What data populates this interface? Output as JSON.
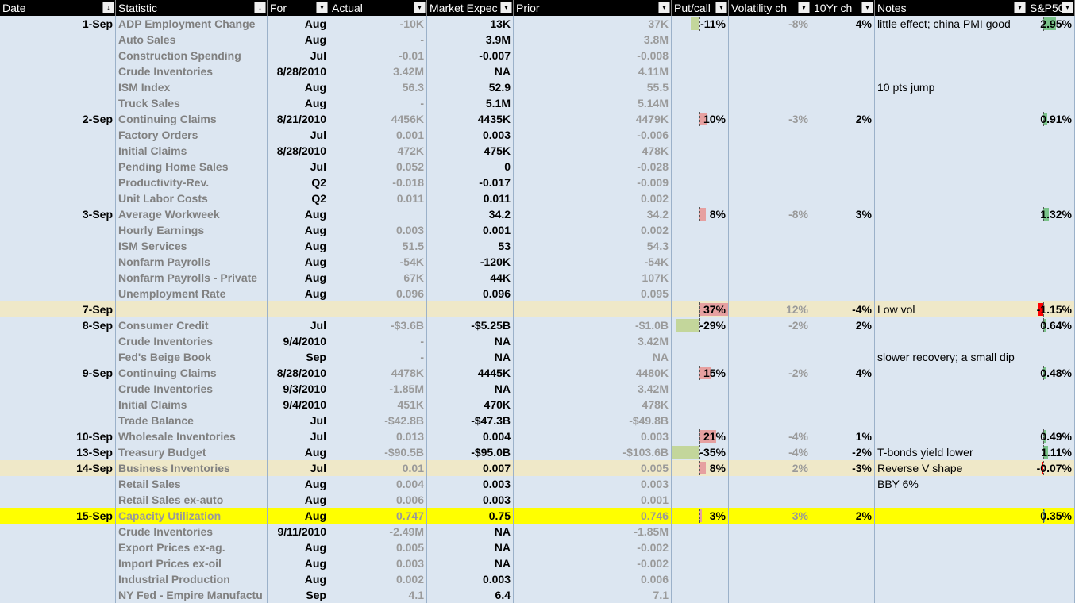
{
  "columns": [
    {
      "label": "Date",
      "filter": "↓"
    },
    {
      "label": "Statistic",
      "filter": "↓"
    },
    {
      "label": "For",
      "filter": "▾"
    },
    {
      "label": "Actual",
      "filter": "▾"
    },
    {
      "label": "Market Expec",
      "filter": "▾"
    },
    {
      "label": "Prior",
      "filter": "▾"
    },
    {
      "label": "Put/call",
      "filter": "▾"
    },
    {
      "label": "Volatility ch",
      "filter": "▾"
    },
    {
      "label": "10Yr ch",
      "filter": "▾"
    },
    {
      "label": "Notes",
      "filter": "▾"
    },
    {
      "label": "S&P500",
      "filter": "▾"
    }
  ],
  "colors": {
    "header_bg": "#000000",
    "sheet_bg": "#dce6f1",
    "highlight_tan": "#efe8c8",
    "highlight_yellow": "#ffff00",
    "bar_pos": "#e6a0a0",
    "bar_neg": "#c3d69b",
    "bar_red": "#ff0000",
    "bar_green": "#7ac38a"
  },
  "rows": [
    {
      "date": "1-Sep",
      "stat": "ADP Employment Change",
      "for": "Aug",
      "actual": "-10K",
      "expected": "13K",
      "prior": "37K",
      "putcall": "-11%",
      "pc_value": -0.11,
      "vol": "-8%",
      "tenyr": "4%",
      "notes": "little effect; china PMI good",
      "sp": "2.95%",
      "sp_value": 2.95,
      "hl": ""
    },
    {
      "date": "",
      "stat": "Auto Sales",
      "for": "Aug",
      "actual": "-",
      "expected": "3.9M",
      "prior": "3.8M",
      "putcall": "",
      "vol": "",
      "tenyr": "",
      "notes": "",
      "sp": "",
      "hl": ""
    },
    {
      "date": "",
      "stat": "Construction Spending",
      "for": "Jul",
      "actual": "-0.01",
      "expected": "-0.007",
      "prior": "-0.008",
      "putcall": "",
      "vol": "",
      "tenyr": "",
      "notes": "",
      "sp": "",
      "hl": ""
    },
    {
      "date": "",
      "stat": "Crude Inventories",
      "for": "8/28/2010",
      "actual": "3.42M",
      "expected": "NA",
      "prior": "4.11M",
      "putcall": "",
      "vol": "",
      "tenyr": "",
      "notes": "",
      "sp": "",
      "hl": ""
    },
    {
      "date": "",
      "stat": "ISM Index",
      "for": "Aug",
      "actual": "56.3",
      "expected": "52.9",
      "prior": "55.5",
      "putcall": "",
      "vol": "",
      "tenyr": "",
      "notes": "10 pts jump",
      "sp": "",
      "hl": ""
    },
    {
      "date": "",
      "stat": "Truck Sales",
      "for": "Aug",
      "actual": "-",
      "expected": "5.1M",
      "prior": "5.14M",
      "putcall": "",
      "vol": "",
      "tenyr": "",
      "notes": "",
      "sp": "",
      "hl": ""
    },
    {
      "date": "2-Sep",
      "stat": "Continuing Claims",
      "for": "8/21/2010",
      "actual": "4456K",
      "expected": "4435K",
      "prior": "4479K",
      "putcall": "10%",
      "pc_value": 0.1,
      "vol": "-3%",
      "tenyr": "2%",
      "notes": "",
      "sp": "0.91%",
      "sp_value": 0.91,
      "hl": ""
    },
    {
      "date": "",
      "stat": "Factory Orders",
      "for": "Jul",
      "actual": "0.001",
      "expected": "0.003",
      "prior": "-0.006",
      "putcall": "",
      "vol": "",
      "tenyr": "",
      "notes": "",
      "sp": "",
      "hl": ""
    },
    {
      "date": "",
      "stat": "Initial Claims",
      "for": "8/28/2010",
      "actual": "472K",
      "expected": "475K",
      "prior": "478K",
      "putcall": "",
      "vol": "",
      "tenyr": "",
      "notes": "",
      "sp": "",
      "hl": ""
    },
    {
      "date": "",
      "stat": "Pending Home Sales",
      "for": "Jul",
      "actual": "0.052",
      "expected": "0",
      "prior": "-0.028",
      "putcall": "",
      "vol": "",
      "tenyr": "",
      "notes": "",
      "sp": "",
      "hl": ""
    },
    {
      "date": "",
      "stat": "Productivity-Rev.",
      "for": "Q2",
      "actual": "-0.018",
      "expected": "-0.017",
      "prior": "-0.009",
      "putcall": "",
      "vol": "",
      "tenyr": "",
      "notes": "",
      "sp": "",
      "hl": ""
    },
    {
      "date": "",
      "stat": "Unit Labor Costs",
      "for": "Q2",
      "actual": "0.011",
      "expected": "0.011",
      "prior": "0.002",
      "putcall": "",
      "vol": "",
      "tenyr": "",
      "notes": "",
      "sp": "",
      "hl": ""
    },
    {
      "date": "3-Sep",
      "stat": "Average Workweek",
      "for": "Aug",
      "actual": "",
      "expected": "34.2",
      "prior": "34.2",
      "putcall": "8%",
      "pc_value": 0.08,
      "vol": "-8%",
      "tenyr": "3%",
      "notes": "",
      "sp": "1.32%",
      "sp_value": 1.32,
      "hl": ""
    },
    {
      "date": "",
      "stat": "Hourly Earnings",
      "for": "Aug",
      "actual": "0.003",
      "expected": "0.001",
      "prior": "0.002",
      "putcall": "",
      "vol": "",
      "tenyr": "",
      "notes": "",
      "sp": "",
      "hl": ""
    },
    {
      "date": "",
      "stat": "ISM Services",
      "for": "Aug",
      "actual": "51.5",
      "expected": "53",
      "prior": "54.3",
      "putcall": "",
      "vol": "",
      "tenyr": "",
      "notes": "",
      "sp": "",
      "hl": ""
    },
    {
      "date": "",
      "stat": "Nonfarm Payrolls",
      "for": "Aug",
      "actual": "-54K",
      "expected": "-120K",
      "prior": "-54K",
      "putcall": "",
      "vol": "",
      "tenyr": "",
      "notes": "",
      "sp": "",
      "hl": ""
    },
    {
      "date": "",
      "stat": "Nonfarm Payrolls - Private",
      "for": "Aug",
      "actual": "67K",
      "expected": "44K",
      "prior": "107K",
      "putcall": "",
      "vol": "",
      "tenyr": "",
      "notes": "",
      "sp": "",
      "hl": ""
    },
    {
      "date": "",
      "stat": "Unemployment Rate",
      "for": "Aug",
      "actual": "0.096",
      "expected": "0.096",
      "prior": "0.095",
      "putcall": "",
      "vol": "",
      "tenyr": "",
      "notes": "",
      "sp": "",
      "hl": ""
    },
    {
      "date": "7-Sep",
      "stat": "",
      "for": "",
      "actual": "",
      "expected": "",
      "prior": "",
      "putcall": "37%",
      "pc_value": 0.37,
      "vol": "12%",
      "tenyr": "-4%",
      "notes": "Low vol",
      "sp": "-1.15%",
      "sp_value": -1.15,
      "hl": "tan"
    },
    {
      "date": "8-Sep",
      "stat": "Consumer Credit",
      "for": "Jul",
      "actual": "-$3.6B",
      "expected": "-$5.25B",
      "prior": "-$1.0B",
      "putcall": "-29%",
      "pc_value": -0.29,
      "vol": "-2%",
      "tenyr": "2%",
      "notes": "",
      "sp": "0.64%",
      "sp_value": 0.64,
      "hl": ""
    },
    {
      "date": "",
      "stat": "Crude Inventories",
      "for": "9/4/2010",
      "actual": "-",
      "expected": "NA",
      "prior": "3.42M",
      "putcall": "",
      "vol": "",
      "tenyr": "",
      "notes": "",
      "sp": "",
      "hl": ""
    },
    {
      "date": "",
      "stat": "Fed's Beige Book",
      "for": "Sep",
      "actual": "-",
      "expected": "NA",
      "prior": "NA",
      "putcall": "",
      "vol": "",
      "tenyr": "",
      "notes": "slower recovery; a small dip",
      "sp": "",
      "hl": ""
    },
    {
      "date": "9-Sep",
      "stat": "Continuing Claims",
      "for": "8/28/2010",
      "actual": "4478K",
      "expected": "4445K",
      "prior": "4480K",
      "putcall": "15%",
      "pc_value": 0.15,
      "vol": "-2%",
      "tenyr": "4%",
      "notes": "",
      "sp": "0.48%",
      "sp_value": 0.48,
      "hl": ""
    },
    {
      "date": "",
      "stat": "Crude Inventories",
      "for": "9/3/2010",
      "actual": "-1.85M",
      "expected": "NA",
      "prior": "3.42M",
      "putcall": "",
      "vol": "",
      "tenyr": "",
      "notes": "",
      "sp": "",
      "hl": ""
    },
    {
      "date": "",
      "stat": "Initial Claims",
      "for": "9/4/2010",
      "actual": "451K",
      "expected": "470K",
      "prior": "478K",
      "putcall": "",
      "vol": "",
      "tenyr": "",
      "notes": "",
      "sp": "",
      "hl": ""
    },
    {
      "date": "",
      "stat": "Trade Balance",
      "for": "Jul",
      "actual": "-$42.8B",
      "expected": "-$47.3B",
      "prior": "-$49.8B",
      "putcall": "",
      "vol": "",
      "tenyr": "",
      "notes": "",
      "sp": "",
      "hl": ""
    },
    {
      "date": "10-Sep",
      "stat": "Wholesale Inventories",
      "for": "Jul",
      "actual": "0.013",
      "expected": "0.004",
      "prior": "0.003",
      "putcall": "21%",
      "pc_value": 0.21,
      "vol": "-4%",
      "tenyr": "1%",
      "notes": "",
      "sp": "0.49%",
      "sp_value": 0.49,
      "hl": ""
    },
    {
      "date": "13-Sep",
      "stat": "Treasury Budget",
      "for": "Aug",
      "actual": "-$90.5B",
      "expected": "-$95.0B",
      "prior": "-$103.6B",
      "putcall": "-35%",
      "pc_value": -0.35,
      "vol": "-4%",
      "tenyr": "-2%",
      "notes": "T-bonds yield lower",
      "sp": "1.11%",
      "sp_value": 1.11,
      "hl": ""
    },
    {
      "date": "14-Sep",
      "stat": "Business Inventories",
      "for": "Jul",
      "actual": "0.01",
      "expected": "0.007",
      "prior": "0.005",
      "putcall": "8%",
      "pc_value": 0.08,
      "vol": "2%",
      "tenyr": "-3%",
      "notes": "Reverse V shape",
      "sp": "-0.07%",
      "sp_value": -0.07,
      "hl": "tan"
    },
    {
      "date": "",
      "stat": "Retail Sales",
      "for": "Aug",
      "actual": "0.004",
      "expected": "0.003",
      "prior": "0.003",
      "putcall": "",
      "vol": "",
      "tenyr": "",
      "notes": "BBY 6%",
      "sp": "",
      "hl": ""
    },
    {
      "date": "",
      "stat": "Retail Sales ex-auto",
      "for": "Aug",
      "actual": "0.006",
      "expected": "0.003",
      "prior": "0.001",
      "putcall": "",
      "vol": "",
      "tenyr": "",
      "notes": "",
      "sp": "",
      "hl": ""
    },
    {
      "date": "15-Sep",
      "stat": "Capacity Utilization",
      "for": "Aug",
      "actual": "0.747",
      "expected": "0.75",
      "prior": "0.746",
      "putcall": "3%",
      "pc_value": 0.03,
      "vol": "3%",
      "tenyr": "2%",
      "notes": "",
      "sp": "0.35%",
      "sp_value": 0.35,
      "hl": "yellow"
    },
    {
      "date": "",
      "stat": "Crude Inventories",
      "for": "9/11/2010",
      "actual": "-2.49M",
      "expected": "NA",
      "prior": "-1.85M",
      "putcall": "",
      "vol": "",
      "tenyr": "",
      "notes": "",
      "sp": "",
      "hl": ""
    },
    {
      "date": "",
      "stat": "Export Prices ex-ag.",
      "for": "Aug",
      "actual": "0.005",
      "expected": "NA",
      "prior": "-0.002",
      "putcall": "",
      "vol": "",
      "tenyr": "",
      "notes": "",
      "sp": "",
      "hl": ""
    },
    {
      "date": "",
      "stat": "Import Prices ex-oil",
      "for": "Aug",
      "actual": "0.003",
      "expected": "NA",
      "prior": "-0.002",
      "putcall": "",
      "vol": "",
      "tenyr": "",
      "notes": "",
      "sp": "",
      "hl": ""
    },
    {
      "date": "",
      "stat": "Industrial Production",
      "for": "Aug",
      "actual": "0.002",
      "expected": "0.003",
      "prior": "0.006",
      "putcall": "",
      "vol": "",
      "tenyr": "",
      "notes": "",
      "sp": "",
      "hl": ""
    },
    {
      "date": "",
      "stat": "NY Fed - Empire Manufactu",
      "for": "Sep",
      "actual": "4.1",
      "expected": "6.4",
      "prior": "7.1",
      "putcall": "",
      "vol": "",
      "tenyr": "",
      "notes": "",
      "sp": "",
      "hl": ""
    }
  ]
}
